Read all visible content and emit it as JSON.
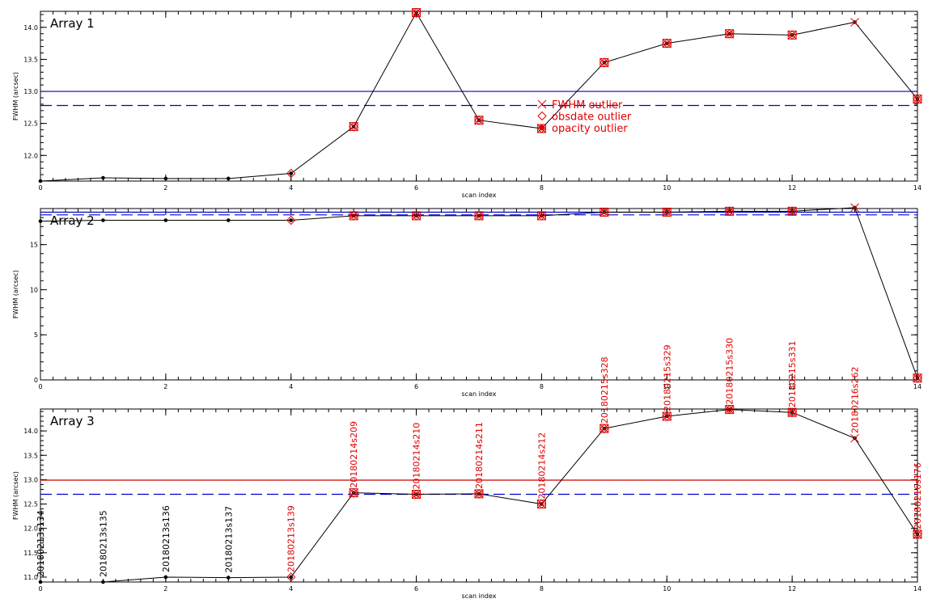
{
  "colors": {
    "outlier": "#e00000",
    "threshold": "#0000cc",
    "threshold_alt": "#cc0000",
    "series": "#000000"
  },
  "legend": {
    "fwhm": "FWHM outlier",
    "obsdate": "obsdate outlier",
    "opacity": "opacity outlier"
  },
  "chart_data": [
    {
      "type": "line",
      "title": "Array 1",
      "xlabel": "scan index",
      "ylabel": "FWHM (arcsec)",
      "xlim": [
        0,
        14
      ],
      "ylim": [
        11.6,
        14.25
      ],
      "xticks": [
        0,
        2,
        4,
        6,
        8,
        10,
        12,
        14
      ],
      "yticks": [
        12.0,
        12.5,
        13.0,
        13.5,
        14.0
      ],
      "ytick_labels": [
        "12.0",
        "12.5",
        "13.0",
        "13.5",
        "14.0"
      ],
      "x": [
        0,
        1,
        2,
        3,
        4,
        5,
        6,
        7,
        8,
        9,
        10,
        11,
        12,
        13,
        14
      ],
      "y": [
        11.6,
        11.65,
        11.64,
        11.64,
        11.72,
        12.45,
        14.23,
        12.55,
        12.42,
        13.45,
        13.75,
        13.9,
        13.88,
        14.08,
        12.88
      ],
      "fwhm_outlier": [
        5,
        6,
        7,
        8,
        9,
        10,
        11,
        12,
        13,
        14
      ],
      "obsdate_outlier": [
        4,
        5,
        6,
        7,
        8,
        9,
        10,
        11,
        12,
        14
      ],
      "opacity_outlier": [
        5,
        6,
        7,
        8,
        9,
        10,
        11,
        12,
        14
      ],
      "thresholds": [
        {
          "value": 13.0,
          "style": "solid",
          "color": "#0000cc"
        },
        {
          "value": 12.78,
          "style": "dashed",
          "color": "#0000cc"
        }
      ],
      "point_labels": []
    },
    {
      "type": "line",
      "title": "Array 2",
      "xlabel": "scan index",
      "ylabel": "FWHM (arcsec)",
      "xlim": [
        0,
        14
      ],
      "ylim": [
        0,
        19.0
      ],
      "xticks": [
        0,
        2,
        4,
        6,
        8,
        10,
        12,
        14
      ],
      "yticks": [
        0,
        5,
        10,
        15
      ],
      "ytick_labels": [
        "0",
        "5",
        "10",
        "15"
      ],
      "x": [
        0,
        1,
        2,
        3,
        4,
        5,
        6,
        7,
        8,
        9,
        10,
        11,
        12,
        13,
        14
      ],
      "y": [
        17.6,
        17.7,
        17.7,
        17.7,
        17.7,
        18.2,
        18.2,
        18.2,
        18.2,
        18.6,
        18.6,
        18.7,
        18.7,
        19.1,
        0.2
      ],
      "fwhm_outlier": [
        5,
        6,
        7,
        8,
        9,
        10,
        11,
        12,
        13,
        14
      ],
      "obsdate_outlier": [
        4,
        5,
        6,
        7,
        8,
        9,
        10,
        11,
        12,
        14
      ],
      "opacity_outlier": [
        5,
        6,
        7,
        8,
        9,
        10,
        11,
        12,
        14
      ],
      "thresholds": [
        {
          "value": 18.6,
          "style": "solid",
          "color": "#0000cc"
        },
        {
          "value": 18.3,
          "style": "dashed",
          "color": "#0000cc"
        }
      ],
      "point_labels": []
    },
    {
      "type": "line",
      "title": "Array 3",
      "xlabel": "scan index",
      "ylabel": "FWHM (arcsec)",
      "xlim": [
        0,
        14
      ],
      "ylim": [
        10.9,
        14.45
      ],
      "xticks": [
        0,
        2,
        4,
        6,
        8,
        10,
        12,
        14
      ],
      "yticks": [
        11.0,
        11.5,
        12.0,
        12.5,
        13.0,
        13.5,
        14.0
      ],
      "ytick_labels": [
        "11.0",
        "11.5",
        "12.0",
        "12.5",
        "13.0",
        "13.5",
        "14.0"
      ],
      "x": [
        0,
        1,
        2,
        3,
        4,
        5,
        6,
        7,
        8,
        9,
        10,
        11,
        12,
        13,
        14
      ],
      "y": [
        10.9,
        10.9,
        11.0,
        10.99,
        11.0,
        12.73,
        12.7,
        12.71,
        12.5,
        14.05,
        14.3,
        14.44,
        14.38,
        13.85,
        11.88
      ],
      "fwhm_outlier": [
        5,
        6,
        7,
        8,
        9,
        10,
        11,
        12,
        13,
        14
      ],
      "obsdate_outlier": [
        4,
        5,
        6,
        7,
        8,
        9,
        10,
        11,
        12,
        14
      ],
      "opacity_outlier": [
        5,
        6,
        7,
        8,
        9,
        10,
        11,
        12,
        14
      ],
      "thresholds": [
        {
          "value": 12.99,
          "style": "solid",
          "color": "#cc0000"
        },
        {
          "value": 12.7,
          "style": "dashed",
          "color": "#0000cc"
        }
      ],
      "point_labels": [
        {
          "x": 0,
          "text": "20180213s134",
          "color": "#000000"
        },
        {
          "x": 1,
          "text": "20180213s135",
          "color": "#000000"
        },
        {
          "x": 2,
          "text": "20180213s136",
          "color": "#000000"
        },
        {
          "x": 3,
          "text": "20180213s137",
          "color": "#000000"
        },
        {
          "x": 4,
          "text": "20180213s139",
          "color": "#e00000"
        },
        {
          "x": 5,
          "text": "20180214s209",
          "color": "#e00000"
        },
        {
          "x": 6,
          "text": "20180214s210",
          "color": "#e00000"
        },
        {
          "x": 7,
          "text": "20180214s211",
          "color": "#e00000"
        },
        {
          "x": 8,
          "text": "20180214s212",
          "color": "#e00000"
        },
        {
          "x": 9,
          "text": "20180215s328",
          "color": "#e00000"
        },
        {
          "x": 10,
          "text": "20180215s329",
          "color": "#e00000"
        },
        {
          "x": 11,
          "text": "20180215s330",
          "color": "#e00000"
        },
        {
          "x": 12,
          "text": "20180215s331",
          "color": "#e00000"
        },
        {
          "x": 13,
          "text": "20180216s262",
          "color": "#e00000"
        },
        {
          "x": 14,
          "text": "20180216s176",
          "color": "#e00000"
        }
      ]
    }
  ]
}
